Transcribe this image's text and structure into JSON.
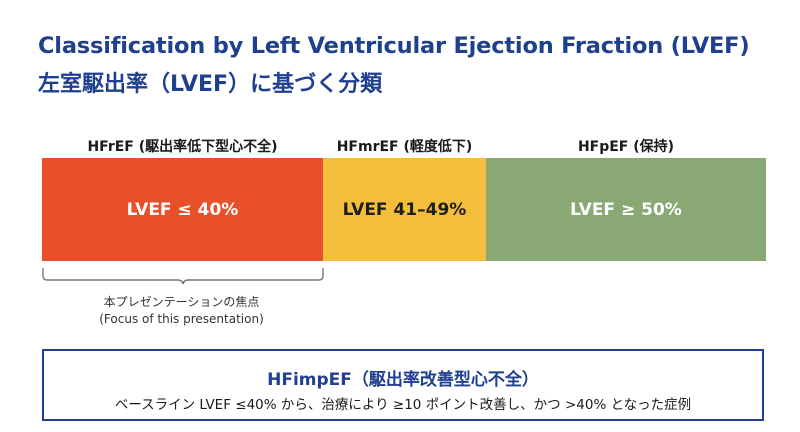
{
  "title": {
    "english": "Classification by Left Ventricular Ejection Fraction (LVEF)",
    "japanese": "左室駆出率（LVEF）に基づく分類"
  },
  "categories": [
    {
      "label": "HFrEF (駆出率低下型心不全)",
      "range": "LVEF ≤ 40%",
      "color": "#e8502a"
    },
    {
      "label": "HFmrEF (軽度低下)",
      "range": "LVEF 41–49%",
      "color": "#f3be3b"
    },
    {
      "label": "HFpEF (保持)",
      "range": "LVEF ≥ 50%",
      "color": "#8aa874"
    }
  ],
  "focus_note": {
    "japanese": "本プレゼンテーションの焦点",
    "english": "(Focus of this presentation)"
  },
  "definition_box": {
    "title": "HFimpEF（駆出率改善型心不全）",
    "text": "ベースライン LVEF ≤40% から、治療により ≥10 ポイント改善し、かつ >40% となった症例"
  }
}
